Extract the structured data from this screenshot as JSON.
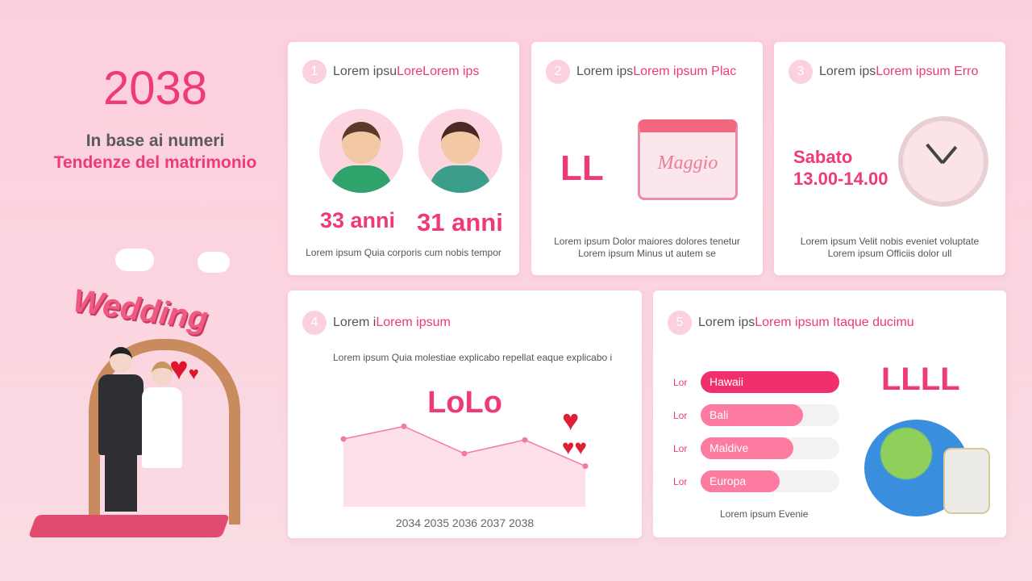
{
  "left": {
    "year": "2038",
    "line1": "In base ai numeri",
    "line2": "Tendenze del matrimonio",
    "sign": "Wedding"
  },
  "cards": [
    {
      "num": "1",
      "title_a": "Lorem ipsu",
      "title_b": "LoreLorem ips",
      "age1": "33 anni",
      "age2": "31 anni",
      "text": "Lorem ipsum Quia corporis cum nobis tempor"
    },
    {
      "num": "2",
      "title_a": "Lorem ips",
      "title_b": "Lorem ipsum Plac",
      "big": "LL",
      "calendar_month": "Maggio",
      "text1": "Lorem ipsum Dolor maiores dolores tenetur",
      "text2": "Lorem ipsum Minus ut autem se"
    },
    {
      "num": "3",
      "title_a": "Lorem ips",
      "title_b": "Lorem ipsum Erro",
      "day": "Sabato",
      "time": "13.00-14.00",
      "text1": "Lorem ipsum Velit nobis eveniet voluptate",
      "text2": "Lorem ipsum Officiis dolor ull"
    },
    {
      "num": "4",
      "title_a": "Lorem i",
      "title_b": "Lorem ipsum",
      "text": "Lorem ipsum Quia molestiae explicabo repellat eaque explicabo i",
      "big": "LoLo",
      "axis_labels": "2034 2035 2036 2037 2038"
    },
    {
      "num": "5",
      "title_a": "Lorem ips",
      "title_b": "Lorem ipsum Itaque ducimu",
      "big": "LLLL",
      "caption": "Lorem ipsum Evenie",
      "bars": [
        {
          "label": "Lor",
          "name": "Hawaii",
          "value": 100,
          "color": "#f0306c"
        },
        {
          "label": "Lor",
          "name": "Bali",
          "value": 74,
          "color": "#fd7aa1"
        },
        {
          "label": "Lor",
          "name": "Maldive",
          "value": 67,
          "color": "#fd7aa1"
        },
        {
          "label": "Lor",
          "name": "Europa",
          "value": 57,
          "color": "#fd7aa1"
        }
      ]
    }
  ],
  "chart_data": {
    "type": "area",
    "categories": [
      "2034",
      "2035",
      "2036",
      "2037",
      "2038"
    ],
    "values": [
      70,
      83,
      55,
      69,
      42
    ],
    "ylim": [
      0,
      100
    ],
    "grid": false,
    "line_color": "#f37aa3",
    "fill_color": "#fde0ea"
  },
  "colors": {
    "accent": "#ee3a75",
    "soft": "#fcd1de"
  }
}
